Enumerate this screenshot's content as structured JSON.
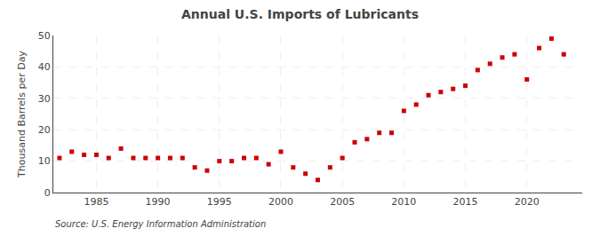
{
  "chart_data": {
    "type": "scatter",
    "title": "Annual U.S. Imports of Lubricants",
    "ylabel": "Thousand Barrels per Day",
    "annotations": [
      "Source: U.S. Energy Information Administration"
    ],
    "x": [
      1982,
      1983,
      1984,
      1985,
      1986,
      1987,
      1988,
      1989,
      1990,
      1991,
      1992,
      1993,
      1994,
      1995,
      1996,
      1997,
      1998,
      1999,
      2000,
      2001,
      2002,
      2003,
      2004,
      2005,
      2006,
      2007,
      2008,
      2009,
      2010,
      2011,
      2012,
      2013,
      2014,
      2015,
      2016,
      2017,
      2018,
      2019,
      2020,
      2021,
      2022,
      2023
    ],
    "values": [
      11,
      13,
      12,
      12,
      11,
      14,
      11,
      11,
      11,
      11,
      11,
      8,
      7,
      10,
      10,
      11,
      11,
      9,
      13,
      8,
      6,
      4,
      8,
      11,
      16,
      17,
      19,
      19,
      26,
      28,
      31,
      32,
      33,
      34,
      39,
      41,
      43,
      44,
      36,
      46,
      49,
      44
    ],
    "color": "#cc0000",
    "marker": "square",
    "xlim": [
      1981.5,
      2024.5
    ],
    "ylim": [
      0,
      50
    ],
    "xticks": [
      1985,
      1990,
      1995,
      2000,
      2005,
      2010,
      2015,
      2020
    ],
    "yticks": [
      0,
      10,
      20,
      30,
      40,
      50
    ],
    "grid": true
  }
}
